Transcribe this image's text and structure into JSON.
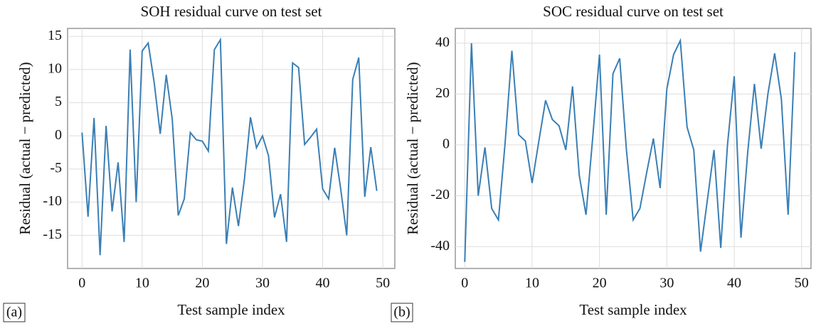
{
  "chart_data": [
    {
      "type": "line",
      "title": "SOH residual curve on test set",
      "xlabel": "Test sample index",
      "ylabel": "Residual (actual − predicted)",
      "panel": "(a)",
      "x": [
        0,
        1,
        2,
        3,
        4,
        5,
        6,
        7,
        8,
        9,
        10,
        11,
        12,
        13,
        14,
        15,
        16,
        17,
        18,
        19,
        20,
        21,
        22,
        23,
        24,
        25,
        26,
        27,
        28,
        29,
        30,
        31,
        32,
        33,
        34,
        35,
        36,
        37,
        38,
        39,
        40,
        41,
        42,
        43,
        44,
        45,
        46,
        47,
        48,
        49
      ],
      "series": [
        {
          "name": "SOH residual",
          "color": "#3a7fb5",
          "values": [
            0.5,
            -12.2,
            2.7,
            -18,
            1.5,
            -11.4,
            -4,
            -16,
            13,
            -10,
            12.8,
            14,
            8,
            0.3,
            9.2,
            2.5,
            -12,
            -9.5,
            0.5,
            -0.6,
            -0.8,
            -2.3,
            13,
            14.5,
            -16.3,
            -7.8,
            -13.6,
            -6.5,
            2.8,
            -1.8,
            0,
            -3,
            -12.3,
            -8.8,
            -16,
            11,
            10.3,
            -1.3,
            -0.2,
            1,
            -8,
            -9.5,
            -1.8,
            -8,
            -15,
            8.5,
            11.8,
            -9.2,
            -1.7,
            -8.3
          ]
        }
      ],
      "xlim": [
        -2.4,
        52
      ],
      "ylim": [
        -20,
        16.2
      ],
      "xticks": [
        0,
        10,
        20,
        30,
        40,
        50
      ],
      "yticks": [
        -15,
        -10,
        -5,
        0,
        5,
        10,
        15
      ],
      "grid": true
    },
    {
      "type": "line",
      "title": "SOC residual curve on test set",
      "xlabel": "Test sample index",
      "ylabel": "Residual (actual − predicted)",
      "panel": "(b)",
      "x": [
        0,
        1,
        2,
        3,
        4,
        5,
        6,
        7,
        8,
        9,
        10,
        11,
        12,
        13,
        14,
        15,
        16,
        17,
        18,
        19,
        20,
        21,
        22,
        23,
        24,
        25,
        26,
        27,
        28,
        29,
        30,
        31,
        32,
        33,
        34,
        35,
        36,
        37,
        38,
        39,
        40,
        41,
        42,
        43,
        44,
        45,
        46,
        47,
        48,
        49
      ],
      "series": [
        {
          "name": "SOC residual",
          "color": "#3a7fb5",
          "values": [
            -46,
            40,
            -20,
            -1,
            -25,
            -29.5,
            1,
            37,
            4,
            1.5,
            -15,
            1.5,
            17.5,
            10,
            7.5,
            -2,
            23,
            -12,
            -27.5,
            3,
            35.5,
            -27.5,
            28,
            34,
            -2,
            -29.5,
            -25,
            -11,
            2.5,
            -17,
            22,
            35.5,
            41,
            7,
            -2,
            -42,
            -22,
            -2,
            -40.5,
            0,
            27,
            -36.5,
            -3,
            24,
            -1.5,
            20,
            36,
            18,
            -27.5,
            36.5
          ]
        }
      ],
      "xlim": [
        -1.4,
        51.4
      ],
      "ylim": [
        -48.6,
        45.8
      ],
      "xticks": [
        0,
        10,
        20,
        30,
        40,
        50
      ],
      "yticks": [
        -40,
        -20,
        0,
        20,
        40
      ],
      "grid": true
    }
  ]
}
